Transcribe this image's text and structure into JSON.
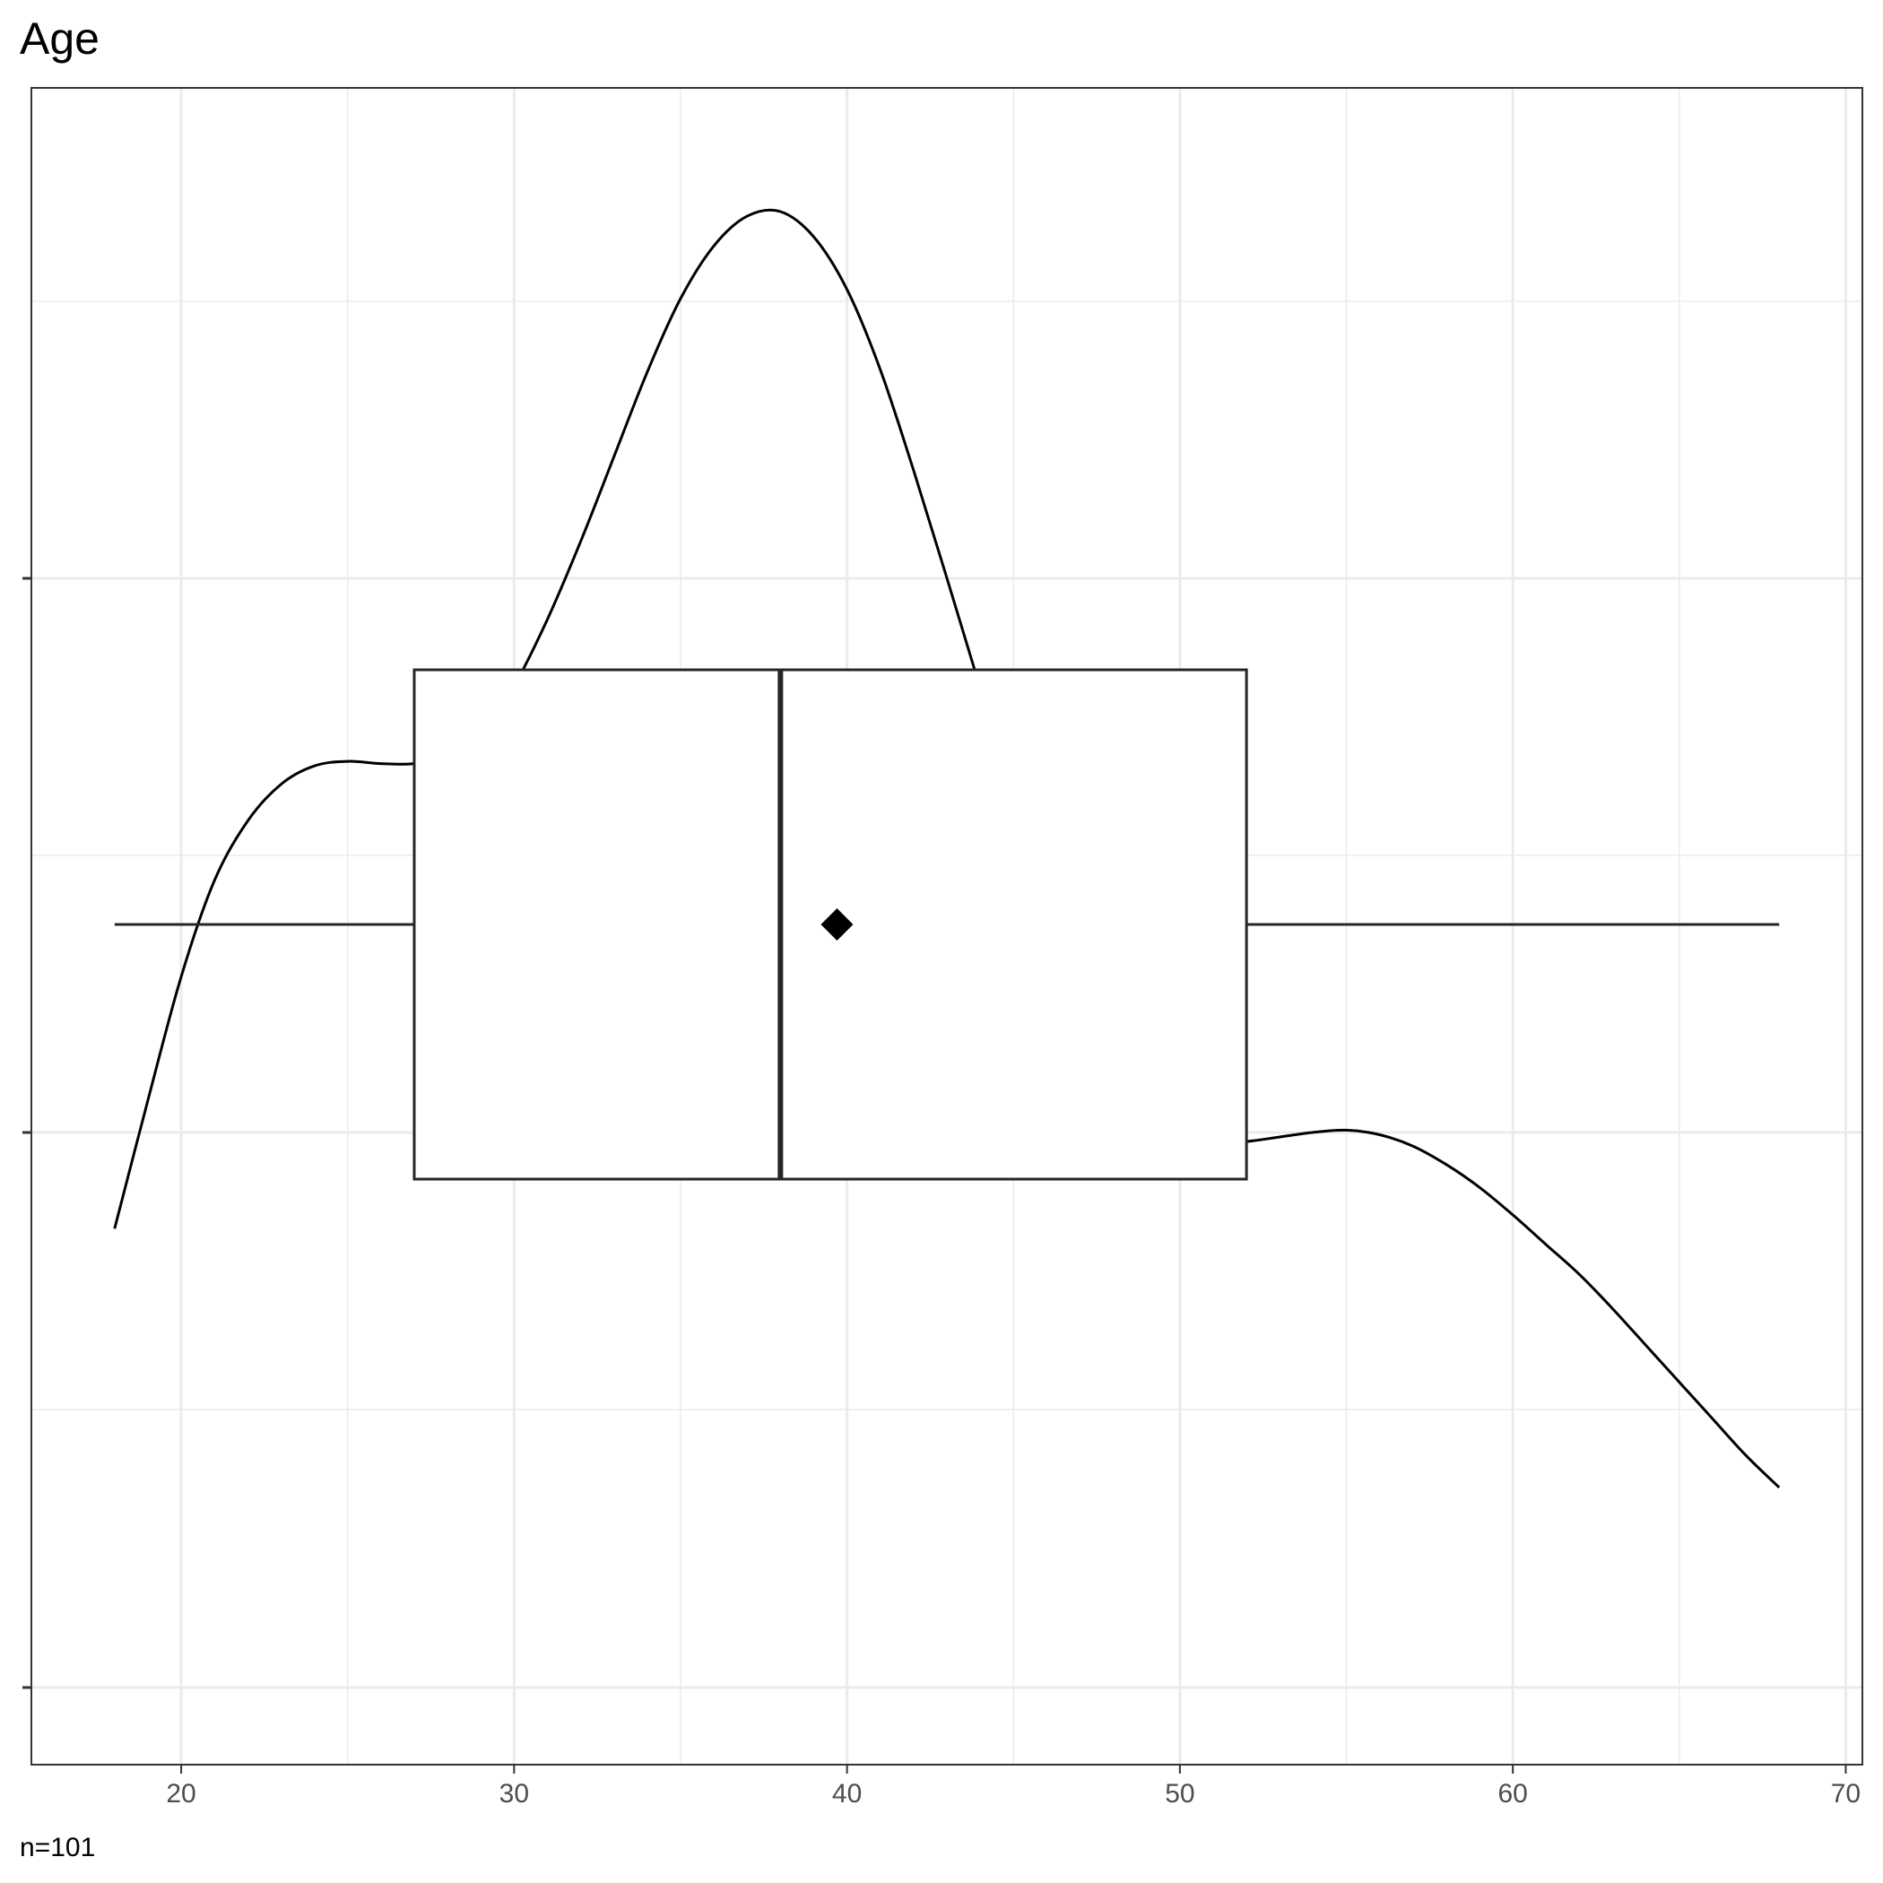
{
  "chart_data": {
    "type": "boxplot_with_density",
    "title": "Age",
    "caption": "n=101",
    "xlim": [
      15.5,
      70.5
    ],
    "x_ticks": [
      20,
      30,
      40,
      50,
      60,
      70
    ],
    "x_tick_labels": [
      "20",
      "30",
      "40",
      "50",
      "60",
      "70"
    ],
    "y_ticks_count": 3,
    "y_tick_labels": [
      "",
      "",
      ""
    ],
    "grid": true,
    "box": {
      "min": 18,
      "q1": 27,
      "median": 38,
      "mean": 39.7,
      "q3": 52,
      "max": 68
    },
    "density": {
      "x": [
        18,
        19,
        20,
        21,
        22,
        23,
        24,
        25,
        26,
        27,
        28,
        29,
        30,
        31,
        32,
        33,
        34,
        35,
        36,
        37,
        38,
        39,
        40,
        41,
        42,
        43,
        44,
        45,
        46,
        47,
        48,
        49,
        50,
        51,
        52,
        53,
        54,
        55,
        56,
        57,
        58,
        59,
        60,
        61,
        62,
        63,
        64,
        65,
        66,
        67,
        68
      ],
      "y": [
        0.0091,
        0.0147,
        0.0201,
        0.0243,
        0.0269,
        0.0285,
        0.0293,
        0.0295,
        0.0294,
        0.0294,
        0.0297,
        0.0308,
        0.0328,
        0.0357,
        0.0391,
        0.0428,
        0.0465,
        0.0497,
        0.052,
        0.0533,
        0.0535,
        0.0524,
        0.0501,
        0.0466,
        0.0422,
        0.0375,
        0.0327,
        0.028,
        0.0236,
        0.0197,
        0.0166,
        0.0144,
        0.0132,
        0.0128,
        0.0129,
        0.0131,
        0.0133,
        0.0134,
        0.0132,
        0.0127,
        0.0119,
        0.0109,
        0.0097,
        0.0084,
        0.0071,
        0.0056,
        0.004,
        0.0024,
        0.0008,
        -0.0008,
        -0.0022
      ],
      "ylim": [
        -0.0143,
        0.0589
      ]
    }
  }
}
